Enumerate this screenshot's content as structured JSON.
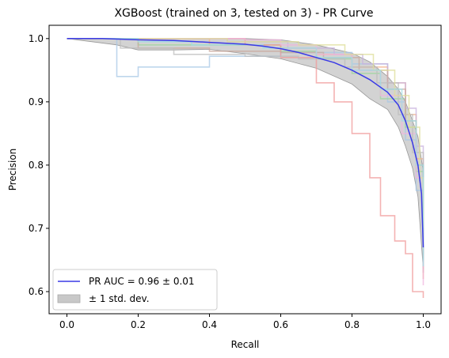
{
  "chart_data": {
    "type": "line",
    "title": "XGBoost (trained on 3, tested on 3) -  PR Curve",
    "xlabel": "Recall",
    "ylabel": "Precision",
    "xlim": [
      -0.05,
      1.05
    ],
    "ylim": [
      0.565,
      1.021
    ],
    "xticks": [
      0.0,
      0.2,
      0.4,
      0.6,
      0.8,
      1.0
    ],
    "xtick_labels": [
      "0.0",
      "0.2",
      "0.4",
      "0.6",
      "0.8",
      "1.0"
    ],
    "yticks": [
      0.6,
      0.7,
      0.8,
      0.9,
      1.0
    ],
    "ytick_labels": [
      "0.6",
      "0.7",
      "0.8",
      "0.9",
      "1.0"
    ],
    "grid": false,
    "legend": {
      "position": "lower-left",
      "entries": [
        {
          "label": "PR AUC = 0.96 ± 0.01",
          "kind": "line",
          "color": "#3a3ae6"
        },
        {
          "label": "± 1 std. dev.",
          "kind": "patch",
          "color": "#c8c8c8"
        }
      ]
    },
    "mean_curve": {
      "name": "PR AUC = 0.96 ± 0.01",
      "color": "#3a3ae6",
      "x": [
        0.0,
        0.1,
        0.2,
        0.3,
        0.4,
        0.5,
        0.55,
        0.6,
        0.65,
        0.7,
        0.75,
        0.8,
        0.85,
        0.9,
        0.93,
        0.95,
        0.97,
        0.985,
        0.995,
        1.0
      ],
      "y": [
        1.0,
        1.0,
        0.998,
        0.997,
        0.994,
        0.991,
        0.988,
        0.984,
        0.978,
        0.97,
        0.962,
        0.95,
        0.935,
        0.915,
        0.895,
        0.87,
        0.835,
        0.8,
        0.755,
        0.67
      ]
    },
    "std_band": {
      "name": "± 1 std. dev.",
      "color": "#c8c8c8",
      "x": [
        0.0,
        0.14,
        0.2,
        0.3,
        0.4,
        0.5,
        0.6,
        0.7,
        0.8,
        0.85,
        0.9,
        0.93,
        0.95,
        0.97,
        0.985,
        1.0
      ],
      "upper": [
        1.0,
        1.0,
        1.0,
        1.0,
        1.0,
        1.0,
        0.998,
        0.99,
        0.977,
        0.963,
        0.94,
        0.92,
        0.9,
        0.87,
        0.845,
        0.79
      ],
      "lower": [
        1.0,
        0.99,
        0.982,
        0.982,
        0.983,
        0.976,
        0.968,
        0.953,
        0.928,
        0.905,
        0.888,
        0.86,
        0.83,
        0.795,
        0.75,
        0.635
      ]
    },
    "fold_curves": [
      {
        "color": "#a8c8e6",
        "x": [
          0.0,
          0.14,
          0.14,
          0.2,
          0.4,
          0.6,
          0.8,
          0.9,
          0.95,
          0.98,
          1.0
        ],
        "y": [
          1.0,
          1.0,
          0.94,
          0.955,
          0.972,
          0.978,
          0.96,
          0.9,
          0.84,
          0.76,
          0.66
        ]
      },
      {
        "color": "#f4b28a",
        "x": [
          0.0,
          0.2,
          0.4,
          0.6,
          0.7,
          0.8,
          0.9,
          0.95,
          0.98,
          1.0
        ],
        "y": [
          1.0,
          1.0,
          0.99,
          0.985,
          0.975,
          0.955,
          0.93,
          0.88,
          0.81,
          0.62
        ]
      },
      {
        "color": "#9fd69f",
        "x": [
          0.0,
          0.2,
          0.4,
          0.6,
          0.7,
          0.8,
          0.88,
          0.95,
          0.98,
          1.0
        ],
        "y": [
          1.0,
          0.99,
          0.99,
          0.98,
          0.968,
          0.945,
          0.905,
          0.86,
          0.79,
          0.66
        ]
      },
      {
        "color": "#f09a9a",
        "x": [
          0.0,
          0.3,
          0.5,
          0.6,
          0.7,
          0.75,
          0.8,
          0.85,
          0.88,
          0.92,
          0.95,
          0.97,
          1.0
        ],
        "y": [
          1.0,
          1.0,
          0.99,
          0.97,
          0.93,
          0.9,
          0.85,
          0.78,
          0.72,
          0.68,
          0.66,
          0.6,
          0.59
        ]
      },
      {
        "color": "#c8b1dd",
        "x": [
          0.0,
          0.25,
          0.45,
          0.62,
          0.75,
          0.83,
          0.9,
          0.95,
          0.98,
          1.0
        ],
        "y": [
          1.0,
          1.0,
          0.995,
          0.985,
          0.975,
          0.96,
          0.93,
          0.89,
          0.83,
          0.68
        ]
      },
      {
        "color": "#c9a89c",
        "x": [
          0.0,
          0.2,
          0.4,
          0.6,
          0.72,
          0.82,
          0.9,
          0.95,
          0.98,
          1.0
        ],
        "y": [
          1.0,
          0.985,
          0.98,
          0.978,
          0.97,
          0.95,
          0.92,
          0.87,
          0.8,
          0.63
        ]
      },
      {
        "color": "#f0b5dd",
        "x": [
          0.0,
          0.3,
          0.5,
          0.6,
          0.7,
          0.8,
          0.88,
          0.94,
          0.98,
          1.0
        ],
        "y": [
          1.0,
          1.0,
          0.998,
          0.99,
          0.975,
          0.95,
          0.91,
          0.85,
          0.78,
          0.61
        ]
      },
      {
        "color": "#bdbdbd",
        "x": [
          0.0,
          0.15,
          0.3,
          0.5,
          0.65,
          0.78,
          0.87,
          0.93,
          0.97,
          1.0
        ],
        "y": [
          1.0,
          0.985,
          0.975,
          0.972,
          0.968,
          0.955,
          0.93,
          0.88,
          0.82,
          0.65
        ]
      },
      {
        "color": "#dede9a",
        "x": [
          0.0,
          0.25,
          0.45,
          0.65,
          0.78,
          0.86,
          0.92,
          0.96,
          0.99,
          1.0
        ],
        "y": [
          1.0,
          1.0,
          0.995,
          0.99,
          0.975,
          0.95,
          0.91,
          0.86,
          0.78,
          0.7
        ]
      },
      {
        "color": "#9fdde6",
        "x": [
          0.0,
          0.2,
          0.35,
          0.55,
          0.7,
          0.8,
          0.88,
          0.94,
          0.98,
          1.0
        ],
        "y": [
          1.0,
          0.995,
          0.99,
          0.985,
          0.97,
          0.95,
          0.92,
          0.87,
          0.8,
          0.64
        ]
      }
    ]
  }
}
